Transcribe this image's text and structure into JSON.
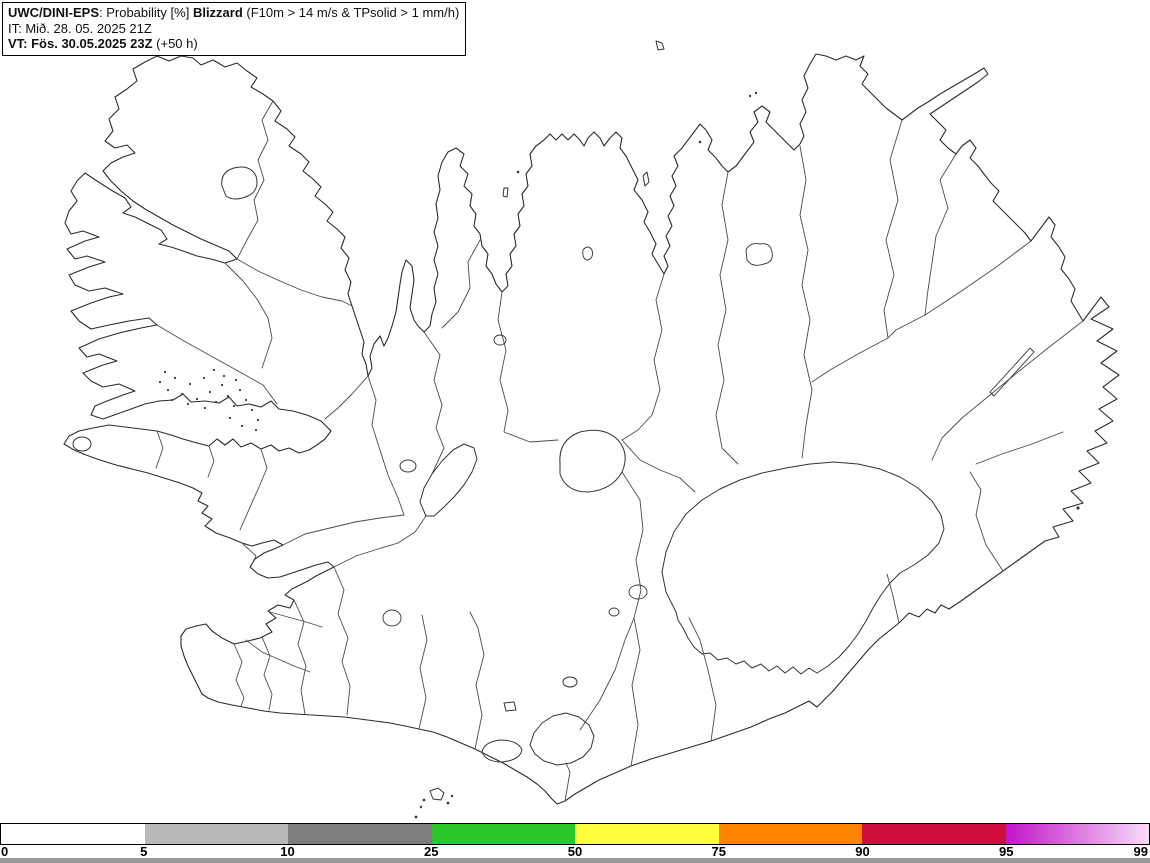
{
  "header": {
    "line1_model": "UWC/DINI-EPS",
    "line1_mid": ": Probability [%] ",
    "line1_param": "Blizzard",
    "line1_rest": " (F10m > 14 m/s & TPsolid > 1 mm/h)",
    "line2": "IT: Mið. 28. 05. 2025 21Z",
    "line3_bold": "VT: Fös. 30.05.2025 23Z",
    "line3_rest": " (+50 h)"
  },
  "map": {
    "depicts": "Outline map of Iceland with coastline, municipal boundaries, glaciers, lakes and small islands"
  },
  "colorbar": {
    "unit": "%",
    "ticks": [
      {
        "label": "0",
        "pos": 0,
        "align": "left"
      },
      {
        "label": "5",
        "pos": 12.5,
        "align": "center"
      },
      {
        "label": "10",
        "pos": 25,
        "align": "center"
      },
      {
        "label": "25",
        "pos": 37.5,
        "align": "center"
      },
      {
        "label": "50",
        "pos": 50,
        "align": "center"
      },
      {
        "label": "75",
        "pos": 62.5,
        "align": "center"
      },
      {
        "label": "90",
        "pos": 75,
        "align": "center"
      },
      {
        "label": "95",
        "pos": 87.5,
        "align": "center"
      },
      {
        "label": "99",
        "pos": 100,
        "align": "right"
      }
    ],
    "segments": [
      {
        "range": "0-5",
        "color": "#ffffff"
      },
      {
        "range": "5-10",
        "color": "#b8b8b8"
      },
      {
        "range": "10-25",
        "color": "#7d7d7d"
      },
      {
        "range": "25-50",
        "color": "#2dc72d"
      },
      {
        "range": "50-75",
        "color": "#ffff3d"
      },
      {
        "range": "75-90",
        "color": "#ff8400"
      },
      {
        "range": "90-95",
        "color": "#d10f3e"
      },
      {
        "range": "95-99",
        "color": "#c315c9",
        "color_end": "#f8dcf8"
      }
    ]
  }
}
